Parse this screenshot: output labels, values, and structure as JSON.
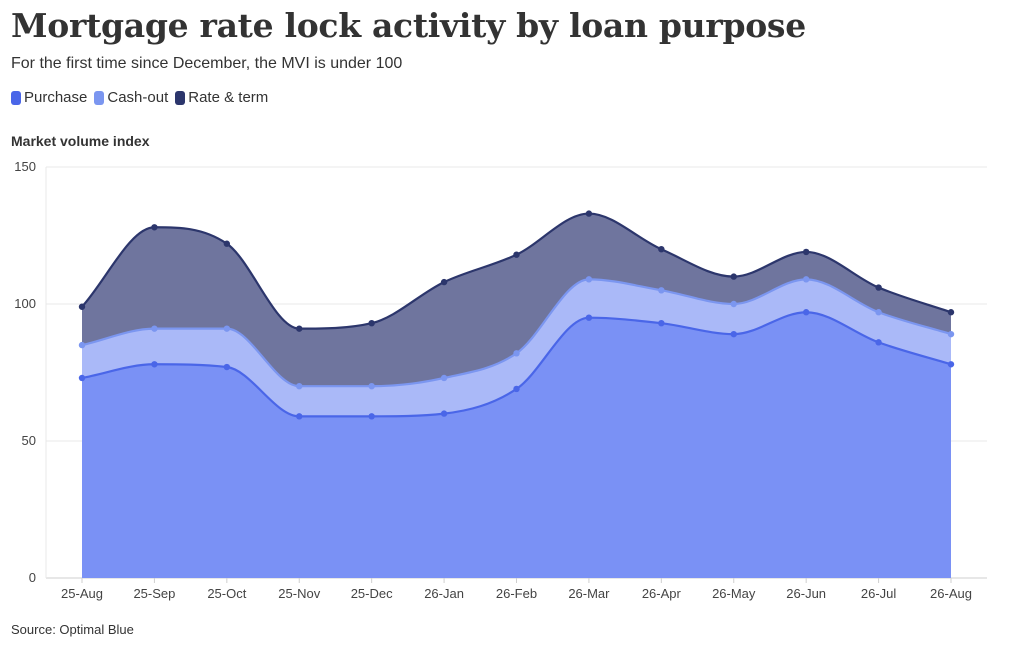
{
  "chart_data": {
    "type": "area",
    "stacked": false,
    "title": "Mortgage rate lock activity by loan purpose",
    "subtitle": "For the first time since December, the MVI is under 100",
    "ylabel": "Market volume index",
    "source": "Source: Optimal Blue",
    "legend_position": "top-left",
    "grid": true,
    "ylim": [
      0,
      150
    ],
    "yticks": [
      0,
      50,
      100,
      150
    ],
    "categories": [
      "25-Aug",
      "25-Sep",
      "25-Oct",
      "25-Nov",
      "25-Dec",
      "26-Jan",
      "26-Feb",
      "26-Mar",
      "26-Apr",
      "26-May",
      "26-Jun",
      "26-Jul",
      "26-Aug"
    ],
    "series": [
      {
        "name": "Purchase",
        "color": "#4a66e8",
        "fill": "#7a91f5",
        "values": [
          73,
          78,
          77,
          59,
          59,
          60,
          69,
          95,
          93,
          89,
          97,
          86,
          78
        ]
      },
      {
        "name": "Cash-out",
        "color": "#7b96f0",
        "fill": "#aab9f8",
        "values": [
          85,
          91,
          91,
          70,
          70,
          73,
          82,
          109,
          105,
          100,
          109,
          97,
          89
        ]
      },
      {
        "name": "Rate & term",
        "color": "#2c366c",
        "fill": "#6f759e",
        "values": [
          99,
          128,
          122,
          91,
          93,
          108,
          118,
          133,
          120,
          110,
          119,
          106,
          97
        ]
      }
    ]
  }
}
